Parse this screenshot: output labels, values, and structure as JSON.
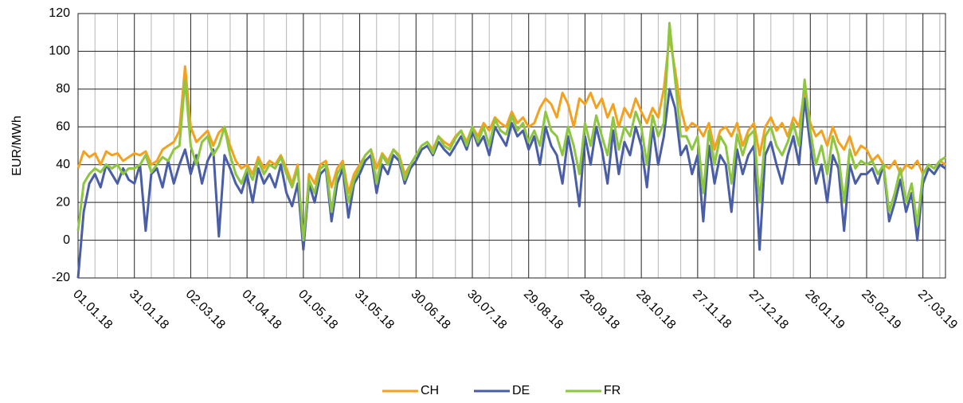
{
  "chart_data": {
    "type": "line",
    "y_label": "EUR/MWh",
    "categories": [
      "01.01.18",
      null,
      null,
      null,
      null,
      null,
      null,
      null,
      null,
      null,
      "31.01.18",
      null,
      null,
      null,
      null,
      null,
      null,
      null,
      null,
      null,
      "02.03.18",
      null,
      null,
      null,
      null,
      null,
      null,
      null,
      null,
      null,
      "01.04.18",
      null,
      null,
      null,
      null,
      null,
      null,
      null,
      null,
      null,
      "01.05.18",
      null,
      null,
      null,
      null,
      null,
      null,
      null,
      null,
      null,
      "31.05.18",
      null,
      null,
      null,
      null,
      null,
      null,
      null,
      null,
      null,
      "30.06.18",
      null,
      null,
      null,
      null,
      null,
      null,
      null,
      null,
      null,
      "30.07.18",
      null,
      null,
      null,
      null,
      null,
      null,
      null,
      null,
      null,
      "29.08.18",
      null,
      null,
      null,
      null,
      null,
      null,
      null,
      null,
      null,
      "28.09.18",
      null,
      null,
      null,
      null,
      null,
      null,
      null,
      null,
      null,
      "28.10.18",
      null,
      null,
      null,
      null,
      null,
      null,
      null,
      null,
      null,
      "27.11.18",
      null,
      null,
      null,
      null,
      null,
      null,
      null,
      null,
      null,
      "27.12.18",
      null,
      null,
      null,
      null,
      null,
      null,
      null,
      null,
      null,
      "26.01.19",
      null,
      null,
      null,
      null,
      null,
      null,
      null,
      null,
      null,
      "25.02.19",
      null,
      null,
      null,
      null,
      null,
      null,
      null,
      null,
      null,
      "27.03.19",
      null,
      null,
      null,
      null
    ],
    "series": [
      {
        "name": "CH",
        "color": "#f4a11e",
        "values": [
          38,
          47,
          44,
          46,
          40,
          47,
          45,
          46,
          42,
          44,
          46,
          45,
          47,
          40,
          42,
          48,
          50,
          52,
          58,
          92,
          60,
          52,
          55,
          58,
          50,
          57,
          60,
          50,
          42,
          38,
          40,
          35,
          44,
          38,
          42,
          40,
          45,
          38,
          30,
          40,
          -5,
          35,
          30,
          40,
          42,
          28,
          38,
          42,
          25,
          35,
          40,
          45,
          48,
          38,
          46,
          42,
          48,
          45,
          35,
          40,
          45,
          50,
          52,
          48,
          55,
          52,
          50,
          55,
          58,
          52,
          60,
          55,
          62,
          58,
          65,
          62,
          60,
          68,
          62,
          65,
          60,
          62,
          70,
          75,
          72,
          65,
          78,
          72,
          60,
          75,
          72,
          78,
          70,
          75,
          65,
          72,
          60,
          70,
          65,
          75,
          68,
          62,
          70,
          65,
          80,
          108,
          90,
          70,
          58,
          62,
          60,
          55,
          62,
          48,
          58,
          60,
          55,
          62,
          50,
          58,
          62,
          45,
          60,
          65,
          58,
          62,
          55,
          65,
          60,
          80,
          62,
          55,
          58,
          50,
          60,
          52,
          48,
          55,
          45,
          50,
          48,
          42,
          45,
          40,
          38,
          42,
          35,
          40,
          38,
          42,
          35,
          40,
          38,
          42,
          40
        ]
      },
      {
        "name": "DE",
        "color": "#4a5ea8",
        "values": [
          -20,
          15,
          30,
          35,
          28,
          40,
          35,
          30,
          38,
          32,
          30,
          40,
          5,
          35,
          38,
          28,
          42,
          30,
          40,
          48,
          35,
          45,
          30,
          42,
          48,
          2,
          45,
          38,
          30,
          25,
          35,
          20,
          38,
          30,
          35,
          28,
          40,
          25,
          18,
          30,
          -5,
          30,
          20,
          35,
          38,
          10,
          30,
          38,
          12,
          30,
          35,
          42,
          45,
          25,
          40,
          35,
          45,
          42,
          30,
          38,
          42,
          48,
          50,
          45,
          52,
          48,
          45,
          50,
          55,
          48,
          58,
          50,
          55,
          45,
          60,
          55,
          50,
          62,
          55,
          58,
          48,
          55,
          40,
          60,
          50,
          45,
          30,
          55,
          40,
          18,
          55,
          40,
          60,
          48,
          30,
          58,
          35,
          52,
          45,
          60,
          50,
          28,
          60,
          40,
          55,
          80,
          70,
          45,
          50,
          35,
          45,
          10,
          50,
          30,
          45,
          40,
          15,
          48,
          35,
          45,
          50,
          -5,
          45,
          52,
          40,
          30,
          45,
          55,
          40,
          75,
          50,
          30,
          40,
          20,
          45,
          38,
          5,
          40,
          30,
          35,
          35,
          38,
          30,
          40,
          10,
          20,
          32,
          15,
          25,
          0,
          30,
          38,
          35,
          40,
          38
        ]
      },
      {
        "name": "FR",
        "color": "#8dc63f",
        "values": [
          5,
          30,
          35,
          38,
          36,
          40,
          38,
          40,
          35,
          38,
          38,
          40,
          45,
          36,
          40,
          44,
          42,
          48,
          50,
          85,
          50,
          40,
          52,
          55,
          45,
          50,
          60,
          45,
          35,
          30,
          38,
          32,
          42,
          35,
          40,
          38,
          44,
          35,
          28,
          38,
          0,
          32,
          25,
          38,
          40,
          15,
          35,
          40,
          20,
          32,
          38,
          45,
          48,
          30,
          45,
          40,
          48,
          44,
          32,
          40,
          45,
          50,
          52,
          46,
          55,
          50,
          48,
          54,
          58,
          50,
          60,
          52,
          60,
          50,
          64,
          58,
          56,
          66,
          58,
          62,
          52,
          58,
          50,
          68,
          58,
          55,
          45,
          60,
          50,
          35,
          62,
          50,
          66,
          55,
          45,
          65,
          48,
          60,
          55,
          68,
          60,
          40,
          66,
          55,
          62,
          115,
          85,
          55,
          55,
          48,
          55,
          25,
          58,
          40,
          55,
          50,
          30,
          56,
          45,
          55,
          58,
          20,
          55,
          60,
          50,
          45,
          52,
          62,
          50,
          85,
          58,
          40,
          50,
          35,
          55,
          45,
          20,
          48,
          38,
          42,
          40,
          42,
          35,
          40,
          15,
          25,
          38,
          20,
          30,
          8,
          35,
          40,
          38,
          42,
          44
        ]
      }
    ],
    "ylim": [
      -20,
      120
    ],
    "yticks": [
      -20,
      0,
      20,
      40,
      60,
      80,
      100,
      120
    ],
    "grid": true,
    "legend": "bottom"
  }
}
